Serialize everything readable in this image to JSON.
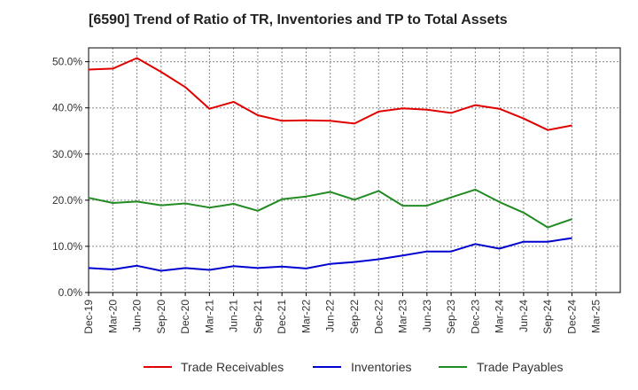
{
  "chart_data": {
    "type": "line",
    "title": "[6590]  Trend of Ratio of TR, Inventories and TP to Total Assets",
    "categories": [
      "Dec-19",
      "Mar-20",
      "Jun-20",
      "Sep-20",
      "Dec-20",
      "Mar-21",
      "Jun-21",
      "Sep-21",
      "Dec-21",
      "Mar-22",
      "Jun-22",
      "Sep-22",
      "Dec-22",
      "Mar-23",
      "Jun-23",
      "Sep-23",
      "Dec-23",
      "Mar-24",
      "Jun-24",
      "Sep-24",
      "Dec-24",
      "Mar-25"
    ],
    "yticks": [
      "0.0%",
      "10.0%",
      "20.0%",
      "30.0%",
      "40.0%",
      "50.0%"
    ],
    "ylim": [
      0,
      53
    ],
    "grid": true,
    "legend_position": "bottom",
    "series": [
      {
        "name": "Trade Receivables",
        "color": "#e00000",
        "values": [
          48.3,
          48.5,
          50.8,
          47.8,
          44.5,
          39.8,
          41.3,
          38.4,
          37.2,
          37.3,
          37.2,
          36.6,
          39.2,
          39.9,
          39.6,
          38.9,
          40.6,
          39.8,
          37.7,
          35.2,
          36.2,
          null
        ]
      },
      {
        "name": "Inventories",
        "color": "#0000d0",
        "values": [
          5.3,
          5.0,
          5.8,
          4.7,
          5.3,
          4.9,
          5.7,
          5.3,
          5.6,
          5.2,
          6.2,
          6.6,
          7.2,
          8.0,
          8.9,
          8.9,
          10.5,
          9.5,
          11.0,
          11.0,
          11.8,
          null
        ]
      },
      {
        "name": "Trade Payables",
        "color": "#228b22",
        "values": [
          20.5,
          19.4,
          19.7,
          18.9,
          19.3,
          18.4,
          19.2,
          17.7,
          20.2,
          20.8,
          21.8,
          20.1,
          22.0,
          18.8,
          18.8,
          20.6,
          22.3,
          19.6,
          17.3,
          14.1,
          15.9,
          null
        ]
      }
    ]
  }
}
